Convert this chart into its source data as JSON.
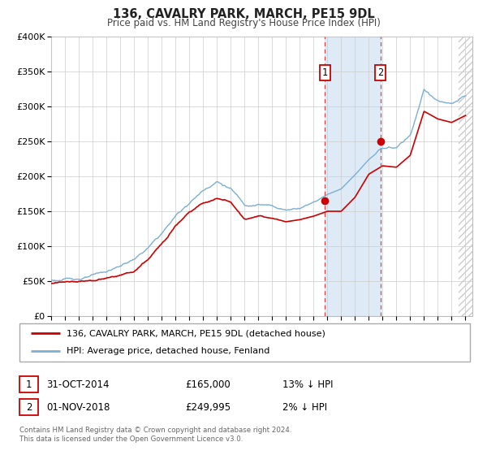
{
  "title": "136, CAVALRY PARK, MARCH, PE15 9DL",
  "subtitle": "Price paid vs. HM Land Registry's House Price Index (HPI)",
  "ylim": [
    0,
    400000
  ],
  "yticks": [
    0,
    50000,
    100000,
    150000,
    200000,
    250000,
    300000,
    350000,
    400000
  ],
  "ytick_labels": [
    "£0",
    "£50K",
    "£100K",
    "£150K",
    "£200K",
    "£250K",
    "£300K",
    "£350K",
    "£400K"
  ],
  "xlim_start": 1995.0,
  "xlim_end": 2025.5,
  "xticks": [
    1995,
    1996,
    1997,
    1998,
    1999,
    2000,
    2001,
    2002,
    2003,
    2004,
    2005,
    2006,
    2007,
    2008,
    2009,
    2010,
    2011,
    2012,
    2013,
    2014,
    2015,
    2016,
    2017,
    2018,
    2019,
    2020,
    2021,
    2022,
    2023,
    2024,
    2025
  ],
  "hpi_color": "#7bafd4",
  "price_color": "#cc0000",
  "marker_color": "#cc0000",
  "vline_color": "#dd4444",
  "shade_color": "#deeaf5",
  "hatch_color": "#cccccc",
  "grid_color": "#cccccc",
  "legend_label_price": "136, CAVALRY PARK, MARCH, PE15 9DL (detached house)",
  "legend_label_hpi": "HPI: Average price, detached house, Fenland",
  "sale1_x": 2014.833,
  "sale1_y": 165000,
  "sale2_x": 2018.833,
  "sale2_y": 249995,
  "hatch_start": 2024.5,
  "footer": "Contains HM Land Registry data © Crown copyright and database right 2024.\nThis data is licensed under the Open Government Licence v3.0.",
  "bg_color": "#ffffff"
}
